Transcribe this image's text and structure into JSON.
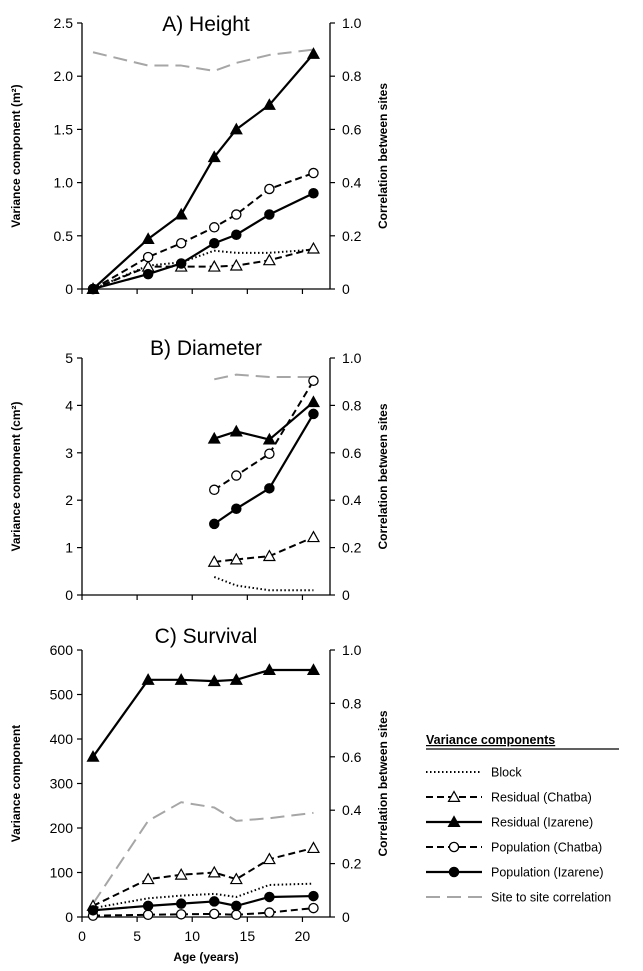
{
  "chart_data": [
    {
      "type": "line",
      "title": "A) Height",
      "ylabel": "Variance component (m²)",
      "ylabel_right": "Correlation between sites",
      "ylim": [
        0,
        2.5
      ],
      "yticks": [
        "0",
        "0.5",
        "1.0",
        "1.5",
        "2.0",
        "2.5"
      ],
      "y2lim": [
        0,
        1.0
      ],
      "y2ticks": [
        "0",
        "0.2",
        "0.4",
        "0.6",
        "0.8",
        "1.0"
      ],
      "series": [
        {
          "name": "Block",
          "axis": "left",
          "x": [
            1,
            6,
            9,
            12,
            14,
            17,
            21
          ],
          "values": [
            0.0,
            0.22,
            0.25,
            0.36,
            0.34,
            0.34,
            0.37
          ]
        },
        {
          "name": "Residual (Chatba)",
          "axis": "left",
          "x": [
            1,
            6,
            9,
            12,
            14,
            17,
            21
          ],
          "values": [
            0.0,
            0.21,
            0.21,
            0.21,
            0.22,
            0.27,
            0.38
          ]
        },
        {
          "name": "Residual (Izarene)",
          "axis": "left",
          "x": [
            1,
            6,
            9,
            12,
            14,
            17,
            21
          ],
          "values": [
            0.0,
            0.47,
            0.7,
            1.24,
            1.5,
            1.73,
            2.21
          ]
        },
        {
          "name": "Population (Chatba)",
          "axis": "left",
          "x": [
            1,
            6,
            9,
            12,
            14,
            17,
            21
          ],
          "values": [
            0.0,
            0.3,
            0.43,
            0.58,
            0.7,
            0.94,
            1.09
          ]
        },
        {
          "name": "Population (Izarene)",
          "axis": "left",
          "x": [
            1,
            6,
            9,
            12,
            14,
            17,
            21
          ],
          "values": [
            0.0,
            0.14,
            0.24,
            0.43,
            0.51,
            0.7,
            0.9
          ]
        },
        {
          "name": "Site to site correlation",
          "axis": "right",
          "x": [
            1,
            6,
            9,
            12,
            14,
            17,
            21
          ],
          "values": [
            0.89,
            0.84,
            0.84,
            0.82,
            0.85,
            0.88,
            0.9
          ]
        }
      ]
    },
    {
      "type": "line",
      "title": "B) Diameter",
      "ylabel": "Variance component (cm²)",
      "ylabel_right": "Correlation between sites",
      "ylim": [
        0,
        5
      ],
      "yticks": [
        "0",
        "1",
        "2",
        "3",
        "4",
        "5"
      ],
      "y2lim": [
        0,
        1.0
      ],
      "y2ticks": [
        "0",
        "0.2",
        "0.4",
        "0.6",
        "0.8",
        "1.0"
      ],
      "series": [
        {
          "name": "Block",
          "axis": "left",
          "x": [
            12,
            14,
            17,
            21
          ],
          "values": [
            0.38,
            0.2,
            0.1,
            0.1
          ]
        },
        {
          "name": "Residual (Chatba)",
          "axis": "left",
          "x": [
            12,
            14,
            17,
            21
          ],
          "values": [
            0.7,
            0.75,
            0.82,
            1.22
          ]
        },
        {
          "name": "Residual (Izarene)",
          "axis": "left",
          "x": [
            12,
            14,
            17,
            21
          ],
          "values": [
            3.3,
            3.45,
            3.28,
            4.07
          ]
        },
        {
          "name": "Population (Chatba)",
          "axis": "left",
          "x": [
            12,
            14,
            17,
            21
          ],
          "values": [
            2.22,
            2.52,
            2.98,
            4.52
          ]
        },
        {
          "name": "Population (Izarene)",
          "axis": "left",
          "x": [
            12,
            14,
            17,
            21
          ],
          "values": [
            1.5,
            1.82,
            2.25,
            3.82
          ]
        },
        {
          "name": "Site to site correlation",
          "axis": "right",
          "x": [
            12,
            14,
            17,
            21
          ],
          "values": [
            0.91,
            0.93,
            0.92,
            0.92
          ]
        }
      ]
    },
    {
      "type": "line",
      "title": "C) Survival",
      "ylabel": "Variance component",
      "ylabel_right": "Correlation between sites",
      "xlabel": "Age (years)",
      "xlim": [
        0,
        22.5
      ],
      "xticks": [
        "0",
        "5",
        "10",
        "15",
        "20"
      ],
      "ylim": [
        0,
        600
      ],
      "yticks": [
        "0",
        "100",
        "200",
        "300",
        "400",
        "500",
        "600"
      ],
      "y2lim": [
        0,
        1.0
      ],
      "y2ticks": [
        "0",
        "0.2",
        "0.4",
        "0.6",
        "0.8",
        "1.0"
      ],
      "series": [
        {
          "name": "Block",
          "axis": "left",
          "x": [
            1,
            6,
            9,
            12,
            14,
            17,
            21
          ],
          "values": [
            20,
            42,
            48,
            52,
            45,
            72,
            75
          ]
        },
        {
          "name": "Residual (Chatba)",
          "axis": "left",
          "x": [
            1,
            6,
            9,
            12,
            14,
            17,
            21
          ],
          "values": [
            25,
            85,
            95,
            100,
            85,
            130,
            155
          ]
        },
        {
          "name": "Residual (Izarene)",
          "axis": "left",
          "x": [
            1,
            6,
            9,
            12,
            14,
            17,
            21
          ],
          "values": [
            360,
            533,
            533,
            530,
            533,
            555,
            555
          ]
        },
        {
          "name": "Population (Chatba)",
          "axis": "left",
          "x": [
            1,
            6,
            9,
            12,
            14,
            17,
            21
          ],
          "values": [
            3,
            5,
            6,
            7,
            5,
            10,
            20
          ]
        },
        {
          "name": "Population (Izarene)",
          "axis": "left",
          "x": [
            1,
            6,
            9,
            12,
            14,
            17,
            21
          ],
          "values": [
            15,
            25,
            30,
            35,
            25,
            45,
            47
          ]
        },
        {
          "name": "Site to site correlation",
          "axis": "right",
          "x": [
            1,
            6,
            9,
            12,
            14,
            17,
            21
          ],
          "values": [
            0.05,
            0.36,
            0.43,
            0.41,
            0.36,
            0.37,
            0.39
          ]
        }
      ]
    }
  ],
  "legend": {
    "title": "Variance components",
    "position": "lower-right",
    "entries": [
      {
        "label": "Block",
        "line": "dotted",
        "marker": "none",
        "color": "#000000"
      },
      {
        "label": "Residual (Chatba)",
        "line": "dashed",
        "marker": "open-triangle",
        "color": "#000000"
      },
      {
        "label": "Residual (Izarene)",
        "line": "solid",
        "marker": "filled-triangle",
        "color": "#000000"
      },
      {
        "label": "Population (Chatba)",
        "line": "dashed",
        "marker": "open-circle",
        "color": "#000000"
      },
      {
        "label": "Population (Izarene)",
        "line": "solid",
        "marker": "filled-circle",
        "color": "#000000"
      },
      {
        "label": "Site to site correlation",
        "line": "long-dash",
        "marker": "none",
        "color": "#a6a6a6"
      }
    ]
  }
}
